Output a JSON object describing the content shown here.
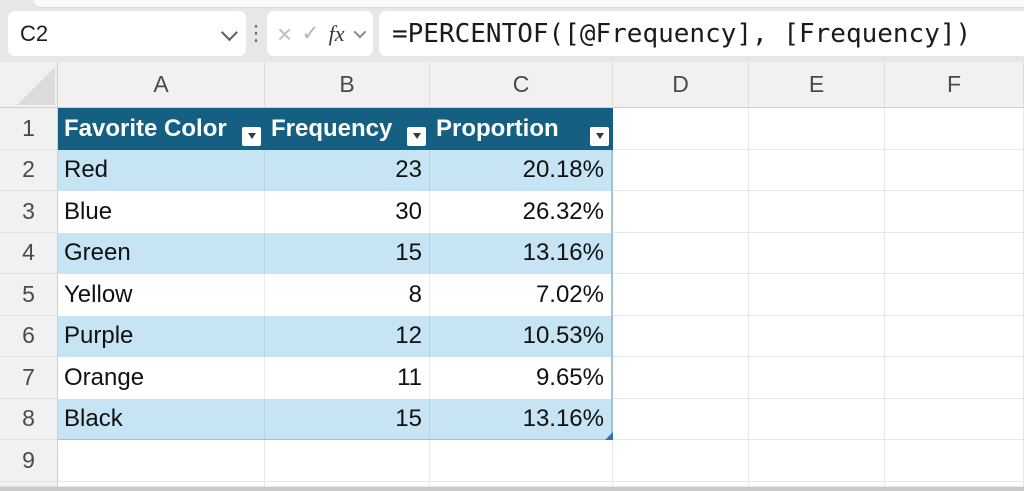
{
  "colors": {
    "table_header_bg": "#156082",
    "band_row_bg": "#C6E4F3",
    "table_border": "#9DC3DF",
    "resize_handle": "#2E75B6"
  },
  "formula_bar": {
    "name_box_value": "C2",
    "cancel_icon": "×",
    "enter_icon": "✓",
    "fx_label": "fx",
    "formula": "=PERCENTOF([@Frequency], [Frequency])"
  },
  "sheet": {
    "column_letters": [
      "A",
      "B",
      "C",
      "D",
      "E",
      "F"
    ],
    "row_numbers": [
      "1",
      "2",
      "3",
      "4",
      "5",
      "6",
      "7",
      "8",
      "9"
    ],
    "table": {
      "headers": [
        "Favorite Color",
        "Frequency",
        "Proportion"
      ],
      "rows": [
        {
          "favorite_color": "Red",
          "frequency": "23",
          "proportion": "20.18%"
        },
        {
          "favorite_color": "Blue",
          "frequency": "30",
          "proportion": "26.32%"
        },
        {
          "favorite_color": "Green",
          "frequency": "15",
          "proportion": "13.16%"
        },
        {
          "favorite_color": "Yellow",
          "frequency": "8",
          "proportion": "7.02%"
        },
        {
          "favorite_color": "Purple",
          "frequency": "12",
          "proportion": "10.53%"
        },
        {
          "favorite_color": "Orange",
          "frequency": "11",
          "proportion": "9.65%"
        },
        {
          "favorite_color": "Black",
          "frequency": "15",
          "proportion": "13.16%"
        }
      ]
    }
  }
}
